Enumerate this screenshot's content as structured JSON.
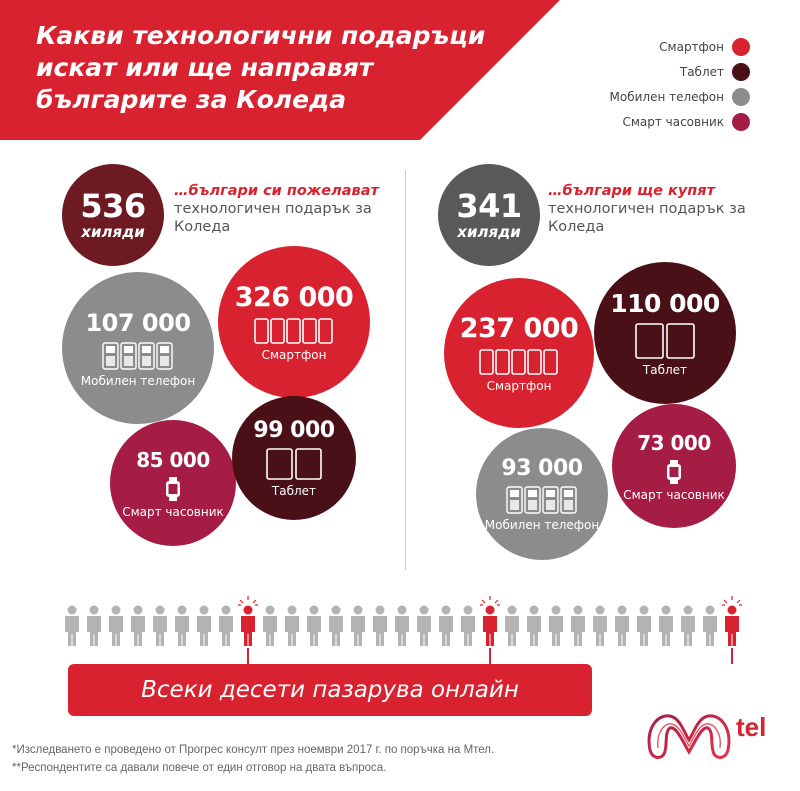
{
  "title": "Какви технологични подаръци искат или ще направят българите за Коледа",
  "colors": {
    "red": "#d8222f",
    "dark": "#4a1018",
    "gray": "#8c8c8c",
    "magenta": "#a51c45",
    "badge_left": "#6e1a23",
    "badge_right": "#595959"
  },
  "legend": [
    {
      "label": "Смартфон",
      "color": "#d8222f"
    },
    {
      "label": "Таблет",
      "color": "#4a1018"
    },
    {
      "label": "Мобилен телефон",
      "color": "#8c8c8c"
    },
    {
      "label": "Смарт часовник",
      "color": "#a51c45"
    }
  ],
  "left": {
    "badge_number": "536",
    "badge_unit": "хиляди",
    "intro_lead": "…българи си пожелават",
    "intro_rest": "технологичен подарък за Коледа",
    "bubbles": {
      "smartphone": {
        "value": "326 000",
        "label": "Смартфон",
        "icon": "smartphone-icon"
      },
      "mobile": {
        "value": "107 000",
        "label": "Мобилен телефон",
        "icon": "mobile-phone-icon"
      },
      "watch": {
        "value": "85 000",
        "label": "Смарт часовник",
        "icon": "smartwatch-icon"
      },
      "tablet": {
        "value": "99 000",
        "label": "Таблет",
        "icon": "tablet-icon"
      }
    }
  },
  "right": {
    "badge_number": "341",
    "badge_unit": "хиляди",
    "intro_lead": "…българи ще купят",
    "intro_rest": "технологичен подарък за Коледа",
    "bubbles": {
      "tablet": {
        "value": "110 000",
        "label": "Таблет",
        "icon": "tablet-icon"
      },
      "smartphone": {
        "value": "237 000",
        "label": "Смартфон",
        "icon": "smartphone-icon"
      },
      "watch": {
        "value": "73 000",
        "label": "Смарт часовник",
        "icon": "smartwatch-icon"
      },
      "mobile": {
        "value": "93 000",
        "label": "Мобилен телефон",
        "icon": "mobile-phone-icon"
      }
    }
  },
  "online_banner": "Всеки десети пазарува онлайн",
  "logo_word": "tel",
  "footnotes": [
    "*Изследването е проведено от Прогрес консулт през ноември 2017 г. по поръчка на Мтел.",
    "**Респондентите са давали повече от един отговор на двата въпроса."
  ]
}
